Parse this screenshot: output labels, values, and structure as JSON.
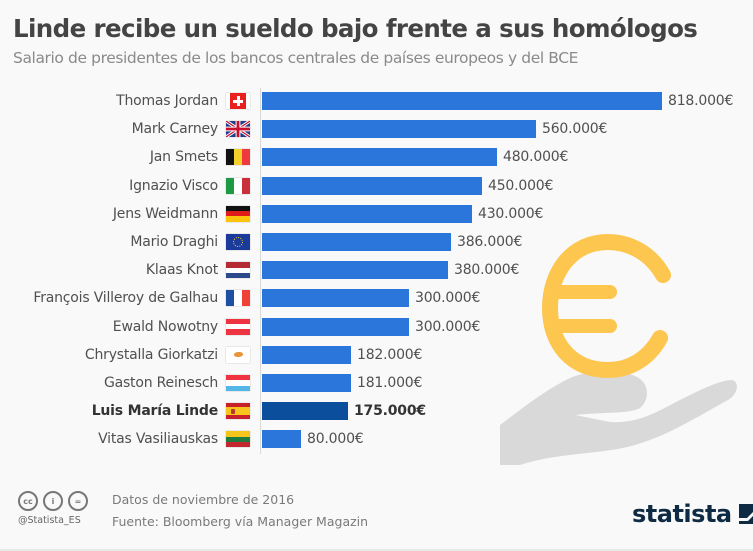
{
  "header": {
    "title": "Linde recibe un sueldo bajo frente a sus homólogos",
    "subtitle": "Salario de presidentes de los bancos centrales de países europeos y del BCE"
  },
  "chart_data": {
    "type": "bar",
    "orientation": "horizontal",
    "title": "Linde recibe un sueldo bajo frente a sus homólogos",
    "subtitle": "Salario de presidentes de los bancos centrales de países europeos y del BCE",
    "xlabel": "",
    "ylabel": "",
    "unit": "€",
    "grid": false,
    "legend": null,
    "categories": [
      "Thomas Jordan",
      "Mark Carney",
      "Jan Smets",
      "Ignazio Visco",
      "Jens Weidmann",
      "Mario Draghi",
      "Klaas Knot",
      "François Villeroy de Galhau",
      "Ewald Nowotny",
      "Chrystalla Giorkatzi",
      "Gaston Reinesch",
      "Luis María Linde",
      "Vitas Vasiliauskas"
    ],
    "values": [
      818000,
      560000,
      480000,
      450000,
      430000,
      386000,
      380000,
      300000,
      300000,
      182000,
      181000,
      175000,
      80000
    ],
    "value_labels": [
      "818.000€",
      "560.000€",
      "480.000€",
      "450.000€",
      "430.000€",
      "386.000€",
      "380.000€",
      "300.000€",
      "300.000€",
      "182.000€",
      "181.000€",
      "175.000€",
      "80.000€"
    ],
    "flags": [
      "switzerland",
      "united-kingdom",
      "belgium",
      "italy",
      "germany",
      "european-union",
      "netherlands",
      "france",
      "austria",
      "cyprus",
      "luxembourg",
      "spain",
      "lithuania"
    ],
    "highlighted": "Luis María Linde",
    "colors": {
      "bar": "#2b76db",
      "highlight": "#0b4e9c"
    }
  },
  "rows": [
    {
      "name": "Thomas Jordan",
      "value": "818.000€",
      "flag": "switzerland",
      "amount": 818000
    },
    {
      "name": "Mark Carney",
      "value": "560.000€",
      "flag": "united-kingdom",
      "amount": 560000
    },
    {
      "name": "Jan Smets",
      "value": "480.000€",
      "flag": "belgium",
      "amount": 480000
    },
    {
      "name": "Ignazio Visco",
      "value": "450.000€",
      "flag": "italy",
      "amount": 450000
    },
    {
      "name": "Jens Weidmann",
      "value": "430.000€",
      "flag": "germany",
      "amount": 430000
    },
    {
      "name": "Mario Draghi",
      "value": "386.000€",
      "flag": "european-union",
      "amount": 386000
    },
    {
      "name": "Klaas Knot",
      "value": "380.000€",
      "flag": "netherlands",
      "amount": 380000
    },
    {
      "name": "François Villeroy de Galhau",
      "value": "300.000€",
      "flag": "france",
      "amount": 300000
    },
    {
      "name": "Ewald Nowotny",
      "value": "300.000€",
      "flag": "austria",
      "amount": 300000
    },
    {
      "name": "Chrystalla Giorkatzi",
      "value": "182.000€",
      "flag": "cyprus",
      "amount": 182000
    },
    {
      "name": "Gaston Reinesch",
      "value": "181.000€",
      "flag": "luxembourg",
      "amount": 181000
    },
    {
      "name": "Luis María Linde",
      "value": "175.000€",
      "flag": "spain",
      "amount": 175000,
      "highlight": true
    },
    {
      "name": "Vitas Vasiliauskas",
      "value": "80.000€",
      "flag": "lithuania",
      "amount": 80000
    }
  ],
  "decoration": {
    "icon": "euro-in-hand-icon",
    "euro_color": "#fdc64e",
    "hand_color": "#d9d9d9"
  },
  "footer": {
    "license_icons": [
      "cc-icon",
      "attribution-icon",
      "no-derivatives-icon"
    ],
    "license_glyphs": [
      "cc",
      "i",
      "="
    ],
    "handle": "@Statista_ES",
    "date_note": "Datos de noviembre de 2016",
    "source": "Fuente: Bloomberg vía Manager Magazin",
    "brand": "statista"
  }
}
